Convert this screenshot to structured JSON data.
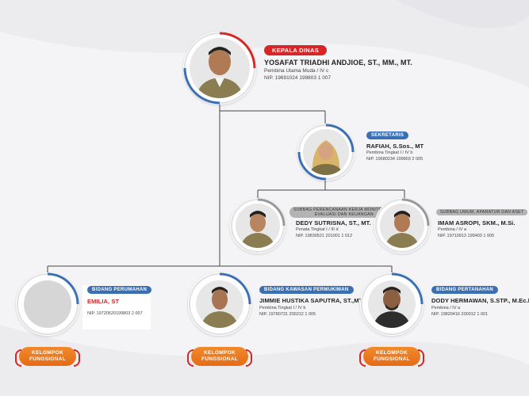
{
  "colors": {
    "red": "#d62628",
    "blue": "#3b6fb3",
    "orange": "#e56b15",
    "line": "#444444"
  },
  "head": {
    "badge": "KEPALA DINAS",
    "name": "YOSAFAT TRIADHI ANDJIOE, ST., MM., MT.",
    "rank": "Pembina Utama Muda / IV c",
    "nip": "NIP. 19691024 199803 1 007"
  },
  "secretary": {
    "badge": "SEKRETARIS",
    "name": "RAFIAH, S.Sos., MT",
    "rank": "Pembina Tingkat I / IV b",
    "nip": "NIP. 19680234 199803 2 005"
  },
  "subbag_monitoring": {
    "badge_line1": "SUBBAG PERENCANAAN KERJA MONITORING,",
    "badge_line2": "EVALUASI DAN KEUANGAN",
    "name": "DEDY SUTRISNA, ST., MT.",
    "rank": "Penata Tingkat I / III d",
    "nip": "NIP. 19830521 201001 1 012"
  },
  "subbag_umum": {
    "badge": "SUBBAG UMUM, APARATUR DAN ASET",
    "name": "IMAM ASROPI, SKM., M.Si.",
    "rank": "Pembina / IV a",
    "nip": "NIP. 19710913 199403 1 005"
  },
  "bidang_perumahan": {
    "badge": "BIDANG PERUMAHAN",
    "name": "EMILIA, ST",
    "nip": "NIP. 19720520199803 2 007"
  },
  "bidang_permukiman": {
    "badge": "BIDANG KAWASAN PERMUKIMAN",
    "name": "JIMMIE HUSTIKA SAPUTRA, ST.,MT.",
    "rank": "Pembina Tingkat I / IV b",
    "nip": "NIP. 19780731 200212 1 005"
  },
  "bidang_pertanahan": {
    "badge": "BIDANG PERTANAHAN",
    "name": "DODY HERMAWAN, S.STP., M.Ec.Dev",
    "rank": "Pembina / IV a",
    "nip": "NIP. 19820416 200012 1 001"
  },
  "groups": [
    {
      "line1": "KELOMPOK",
      "line2": "FUNGSIONAL"
    },
    {
      "line1": "KELOMPOK",
      "line2": "FUNGSIONAL"
    },
    {
      "line1": "KELOMPOK",
      "line2": "FUNGSIONAL"
    }
  ]
}
